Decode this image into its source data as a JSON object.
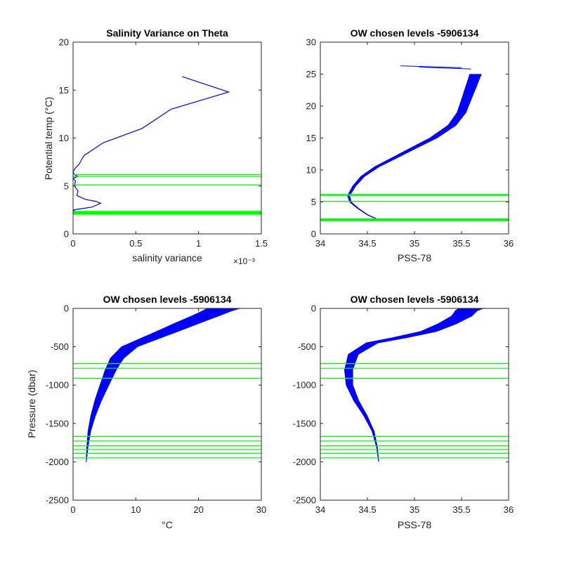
{
  "chart_data": [
    {
      "type": "line",
      "title": "Salinity Variance on Theta",
      "xlabel": "salinity variance",
      "ylabel": "Potential temp (°C)",
      "x_multiplier_label": "×10⁻³",
      "xlim": [
        0,
        0.0015
      ],
      "ylim": [
        0,
        20
      ],
      "xticks": [
        0,
        0.0005,
        0.001,
        0.0015
      ],
      "xtick_labels": [
        "0",
        "0.5",
        "1",
        "1.5"
      ],
      "yticks": [
        0,
        5,
        10,
        15,
        20
      ],
      "ytick_labels": [
        "0",
        "5",
        "10",
        "15",
        "20"
      ],
      "grid": false,
      "series": [
        {
          "color": "#0000ff",
          "points": [
            [
              0.00087,
              16.4
            ],
            [
              0.00124,
              14.8
            ],
            [
              0.00078,
              13.0
            ],
            [
              0.00055,
              11.0
            ],
            [
              0.00024,
              9.5
            ],
            [
              9e-05,
              8.2
            ],
            [
              7e-05,
              7.8
            ],
            [
              5e-05,
              7.3
            ],
            [
              2e-05,
              6.9
            ],
            [
              0.0,
              6.5
            ],
            [
              1e-05,
              6.2
            ],
            [
              4e-05,
              6.0
            ],
            [
              0.0,
              5.8
            ],
            [
              2e-05,
              5.5
            ],
            [
              1e-05,
              5.0
            ],
            [
              4e-05,
              4.5
            ],
            [
              3e-05,
              4.0
            ],
            [
              0.0001,
              3.6
            ],
            [
              0.00018,
              3.4
            ],
            [
              0.00022,
              3.2
            ],
            [
              0.00015,
              2.8
            ],
            [
              5e-05,
              2.6
            ],
            [
              0.0,
              2.5
            ],
            [
              2e-05,
              2.3
            ],
            [
              1e-05,
              2.1
            ]
          ]
        }
      ],
      "hlines": {
        "color": "#00ff00",
        "values": [
          6.2,
          6.0,
          5.1,
          2.05,
          2.1,
          2.15,
          2.2,
          2.25,
          2.3,
          2.35
        ]
      }
    },
    {
      "type": "line",
      "title": "OW chosen levels -5906134",
      "xlabel": "PSS-78",
      "ylabel": "",
      "xlim": [
        34,
        36
      ],
      "ylim": [
        0,
        30
      ],
      "xticks": [
        34,
        34.5,
        35,
        35.5,
        36
      ],
      "xtick_labels": [
        "34",
        "34.5",
        "35",
        "35.5",
        "36"
      ],
      "yticks": [
        0,
        5,
        10,
        15,
        20,
        25,
        30
      ],
      "ytick_labels": [
        "0",
        "5",
        "10",
        "15",
        "20",
        "25",
        "30"
      ],
      "grid": false,
      "profiles": {
        "color": "#0000ff",
        "count": 140,
        "spread_x": 0.12,
        "base": [
          [
            34.62,
            2.2
          ],
          [
            34.5,
            3.0
          ],
          [
            34.4,
            4.0
          ],
          [
            34.32,
            5.0
          ],
          [
            34.3,
            6.0
          ],
          [
            34.36,
            7.5
          ],
          [
            34.45,
            9.0
          ],
          [
            34.6,
            10.5
          ],
          [
            34.8,
            12.0
          ],
          [
            35.0,
            13.5
          ],
          [
            35.2,
            15.0
          ],
          [
            35.4,
            17.0
          ],
          [
            35.5,
            19.0
          ],
          [
            35.55,
            21.0
          ],
          [
            35.6,
            23.0
          ],
          [
            35.65,
            25.0
          ]
        ],
        "outliers": [
          [
            [
              35.5,
              26.0
            ],
            [
              34.85,
              26.3
            ]
          ],
          [
            [
              35.6,
              25.8
            ],
            [
              35.05,
              26.1
            ]
          ]
        ]
      },
      "hlines": {
        "color": "#00ff00",
        "values": [
          6.2,
          6.0,
          5.1,
          2.05,
          2.1,
          2.15,
          2.2,
          2.25,
          2.3,
          2.35
        ]
      }
    },
    {
      "type": "line",
      "title": "OW chosen levels -5906134",
      "xlabel": "°C",
      "ylabel": "Pressure (dbar)",
      "xlim": [
        0,
        30
      ],
      "ylim": [
        -2500,
        0
      ],
      "xticks": [
        0,
        10,
        20,
        30
      ],
      "xtick_labels": [
        "0",
        "10",
        "20",
        "30"
      ],
      "yticks": [
        0,
        -500,
        -1000,
        -1500,
        -2000,
        -2500
      ],
      "ytick_labels": [
        "0",
        "-500",
        "-1000",
        "-1500",
        "-2000",
        "-2500"
      ],
      "grid": false,
      "profiles": {
        "color": "#0000ff",
        "count": 140,
        "spread_x": 5.0,
        "base": [
          [
            2.1,
            -2000
          ],
          [
            2.3,
            -1800
          ],
          [
            2.6,
            -1600
          ],
          [
            3.2,
            -1400
          ],
          [
            4.0,
            -1200
          ],
          [
            5.0,
            -1000
          ],
          [
            6.0,
            -800
          ],
          [
            7.0,
            -650
          ],
          [
            9.0,
            -500
          ],
          [
            12.0,
            -400
          ],
          [
            15.0,
            -300
          ],
          [
            18.0,
            -200
          ],
          [
            21.0,
            -100
          ],
          [
            23.0,
            -30
          ],
          [
            24.0,
            0
          ]
        ],
        "outliers": []
      },
      "hlines": {
        "color": "#00ff00",
        "values": [
          -720,
          -780,
          -910,
          -1670,
          -1730,
          -1790,
          -1840,
          -1890,
          -1950
        ]
      }
    },
    {
      "type": "line",
      "title": "OW chosen levels -5906134",
      "xlabel": "PSS-78",
      "ylabel": "",
      "xlim": [
        34,
        36
      ],
      "ylim": [
        -2500,
        0
      ],
      "xticks": [
        34,
        34.5,
        35,
        35.5,
        36
      ],
      "xtick_labels": [
        "34",
        "34.5",
        "35",
        "35.5",
        "36"
      ],
      "yticks": [
        0,
        -500,
        -1000,
        -1500,
        -2000,
        -2500
      ],
      "ytick_labels": [
        "0",
        "-500",
        "-1000",
        "-1500",
        "-2000",
        "-2500"
      ],
      "grid": false,
      "profiles": {
        "color": "#0000ff",
        "count": 140,
        "spread_x": 0.25,
        "base": [
          [
            34.62,
            -2000
          ],
          [
            34.6,
            -1800
          ],
          [
            34.56,
            -1600
          ],
          [
            34.48,
            -1400
          ],
          [
            34.38,
            -1200
          ],
          [
            34.31,
            -1000
          ],
          [
            34.3,
            -800
          ],
          [
            34.35,
            -600
          ],
          [
            34.55,
            -450
          ],
          [
            34.85,
            -380
          ],
          [
            35.15,
            -300
          ],
          [
            35.35,
            -200
          ],
          [
            35.5,
            -100
          ],
          [
            35.55,
            -30
          ],
          [
            35.6,
            0
          ]
        ],
        "outliers": [
          [
            [
              35.55,
              -5
            ],
            [
              35.8,
              0
            ]
          ]
        ]
      },
      "hlines": {
        "color": "#00ff00",
        "values": [
          -720,
          -780,
          -910,
          -1670,
          -1730,
          -1790,
          -1840,
          -1890,
          -1950
        ]
      }
    }
  ]
}
